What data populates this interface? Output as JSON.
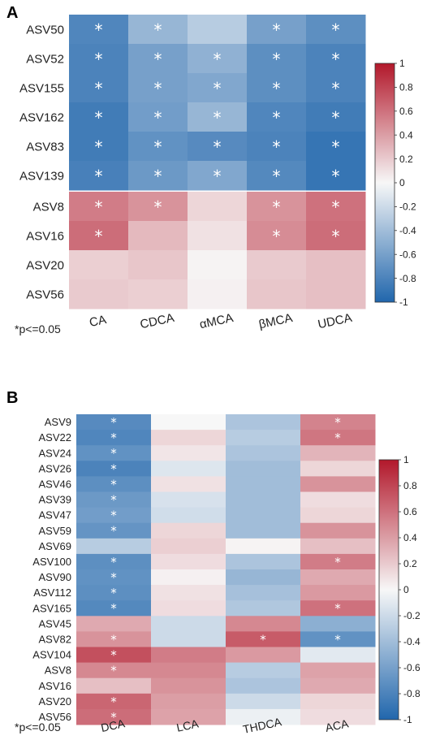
{
  "chart_data": [
    {
      "type": "heatmap",
      "panel": "A",
      "rows": [
        "ASV50",
        "ASV52",
        "ASV155",
        "ASV162",
        "ASV83",
        "ASV139",
        "ASV8",
        "ASV16",
        "ASV20",
        "ASV56"
      ],
      "columns": [
        "CA",
        "CDCA",
        "αMCA",
        "βMCA",
        "UDCA"
      ],
      "values": [
        [
          -0.78,
          -0.45,
          -0.3,
          -0.6,
          -0.72
        ],
        [
          -0.8,
          -0.6,
          -0.48,
          -0.72,
          -0.8
        ],
        [
          -0.8,
          -0.6,
          -0.55,
          -0.72,
          -0.8
        ],
        [
          -0.85,
          -0.62,
          -0.45,
          -0.78,
          -0.85
        ],
        [
          -0.85,
          -0.7,
          -0.75,
          -0.8,
          -0.9
        ],
        [
          -0.82,
          -0.65,
          -0.55,
          -0.76,
          -0.9
        ],
        [
          0.55,
          0.45,
          0.15,
          0.45,
          0.6
        ],
        [
          0.62,
          0.28,
          0.1,
          0.48,
          0.62
        ],
        [
          0.18,
          0.22,
          0.02,
          0.2,
          0.25
        ],
        [
          0.2,
          0.18,
          0.03,
          0.22,
          0.25
        ]
      ],
      "significant": [
        [
          true,
          true,
          false,
          true,
          true
        ],
        [
          true,
          true,
          true,
          true,
          true
        ],
        [
          true,
          true,
          true,
          true,
          true
        ],
        [
          true,
          true,
          true,
          true,
          true
        ],
        [
          true,
          true,
          true,
          true,
          true
        ],
        [
          true,
          true,
          true,
          true,
          true
        ],
        [
          true,
          true,
          false,
          true,
          true
        ],
        [
          true,
          false,
          false,
          true,
          true
        ],
        [
          false,
          false,
          false,
          false,
          false
        ],
        [
          false,
          false,
          false,
          false,
          false
        ]
      ],
      "colorbar": {
        "range": [
          -1,
          1
        ],
        "ticks": [
          "1",
          "0.8",
          "0.6",
          "0.4",
          "0.2",
          "0",
          "-0.2",
          "-0.4",
          "-0.6",
          "-0.8",
          "-1"
        ]
      },
      "footnote": "*p<=0.05"
    },
    {
      "type": "heatmap",
      "panel": "B",
      "rows": [
        "ASV9",
        "ASV22",
        "ASV24",
        "ASV26",
        "ASV46",
        "ASV39",
        "ASV47",
        "ASV59",
        "ASV69",
        "ASV100",
        "ASV90",
        "ASV112",
        "ASV165",
        "ASV45",
        "ASV82",
        "ASV104",
        "ASV8",
        "ASV16",
        "ASV20",
        "ASV56"
      ],
      "columns": [
        "DCA",
        "LCA",
        "THDCA",
        "ACA"
      ],
      "values": [
        [
          -0.75,
          0.0,
          -0.35,
          0.52
        ],
        [
          -0.78,
          0.15,
          -0.3,
          0.58
        ],
        [
          -0.7,
          0.08,
          -0.35,
          0.3
        ],
        [
          -0.8,
          -0.12,
          -0.4,
          0.15
        ],
        [
          -0.72,
          0.1,
          -0.4,
          0.45
        ],
        [
          -0.65,
          -0.15,
          -0.4,
          0.12
        ],
        [
          -0.62,
          -0.18,
          -0.4,
          0.15
        ],
        [
          -0.68,
          0.15,
          -0.4,
          0.45
        ],
        [
          -0.3,
          0.18,
          0.02,
          0.25
        ],
        [
          -0.72,
          0.12,
          -0.35,
          0.55
        ],
        [
          -0.7,
          0.03,
          -0.45,
          0.35
        ],
        [
          -0.72,
          0.1,
          -0.38,
          0.42
        ],
        [
          -0.76,
          0.12,
          -0.33,
          0.6
        ],
        [
          0.35,
          -0.2,
          0.5,
          -0.5
        ],
        [
          0.45,
          -0.2,
          0.7,
          -0.7
        ],
        [
          0.75,
          0.55,
          0.42,
          -0.1
        ],
        [
          0.5,
          0.5,
          -0.3,
          0.38
        ],
        [
          0.25,
          0.45,
          -0.35,
          0.35
        ],
        [
          0.65,
          0.4,
          -0.2,
          0.15
        ],
        [
          0.62,
          0.38,
          -0.05,
          0.12
        ]
      ],
      "significant": [
        [
          true,
          false,
          false,
          true
        ],
        [
          true,
          false,
          false,
          true
        ],
        [
          true,
          false,
          false,
          false
        ],
        [
          true,
          false,
          false,
          false
        ],
        [
          true,
          false,
          false,
          false
        ],
        [
          true,
          false,
          false,
          false
        ],
        [
          true,
          false,
          false,
          false
        ],
        [
          true,
          false,
          false,
          false
        ],
        [
          false,
          false,
          false,
          false
        ],
        [
          true,
          false,
          false,
          true
        ],
        [
          true,
          false,
          false,
          false
        ],
        [
          true,
          false,
          false,
          false
        ],
        [
          true,
          false,
          false,
          true
        ],
        [
          false,
          false,
          false,
          false
        ],
        [
          true,
          false,
          true,
          true
        ],
        [
          true,
          false,
          false,
          false
        ],
        [
          true,
          false,
          false,
          false
        ],
        [
          false,
          false,
          false,
          false
        ],
        [
          true,
          false,
          false,
          false
        ],
        [
          true,
          false,
          false,
          false
        ]
      ],
      "colorbar": {
        "range": [
          -1,
          1
        ],
        "ticks": [
          "1",
          "0.8",
          "0.6",
          "0.4",
          "0.2",
          "0",
          "-0.2",
          "-0.4",
          "-0.6",
          "-0.8",
          "-1"
        ]
      },
      "footnote": "*p<=0.05"
    }
  ],
  "colors": {
    "negative": "#2166ac",
    "neutral": "#f7f7f7",
    "positive": "#b2182b",
    "star": "#ffffff"
  }
}
